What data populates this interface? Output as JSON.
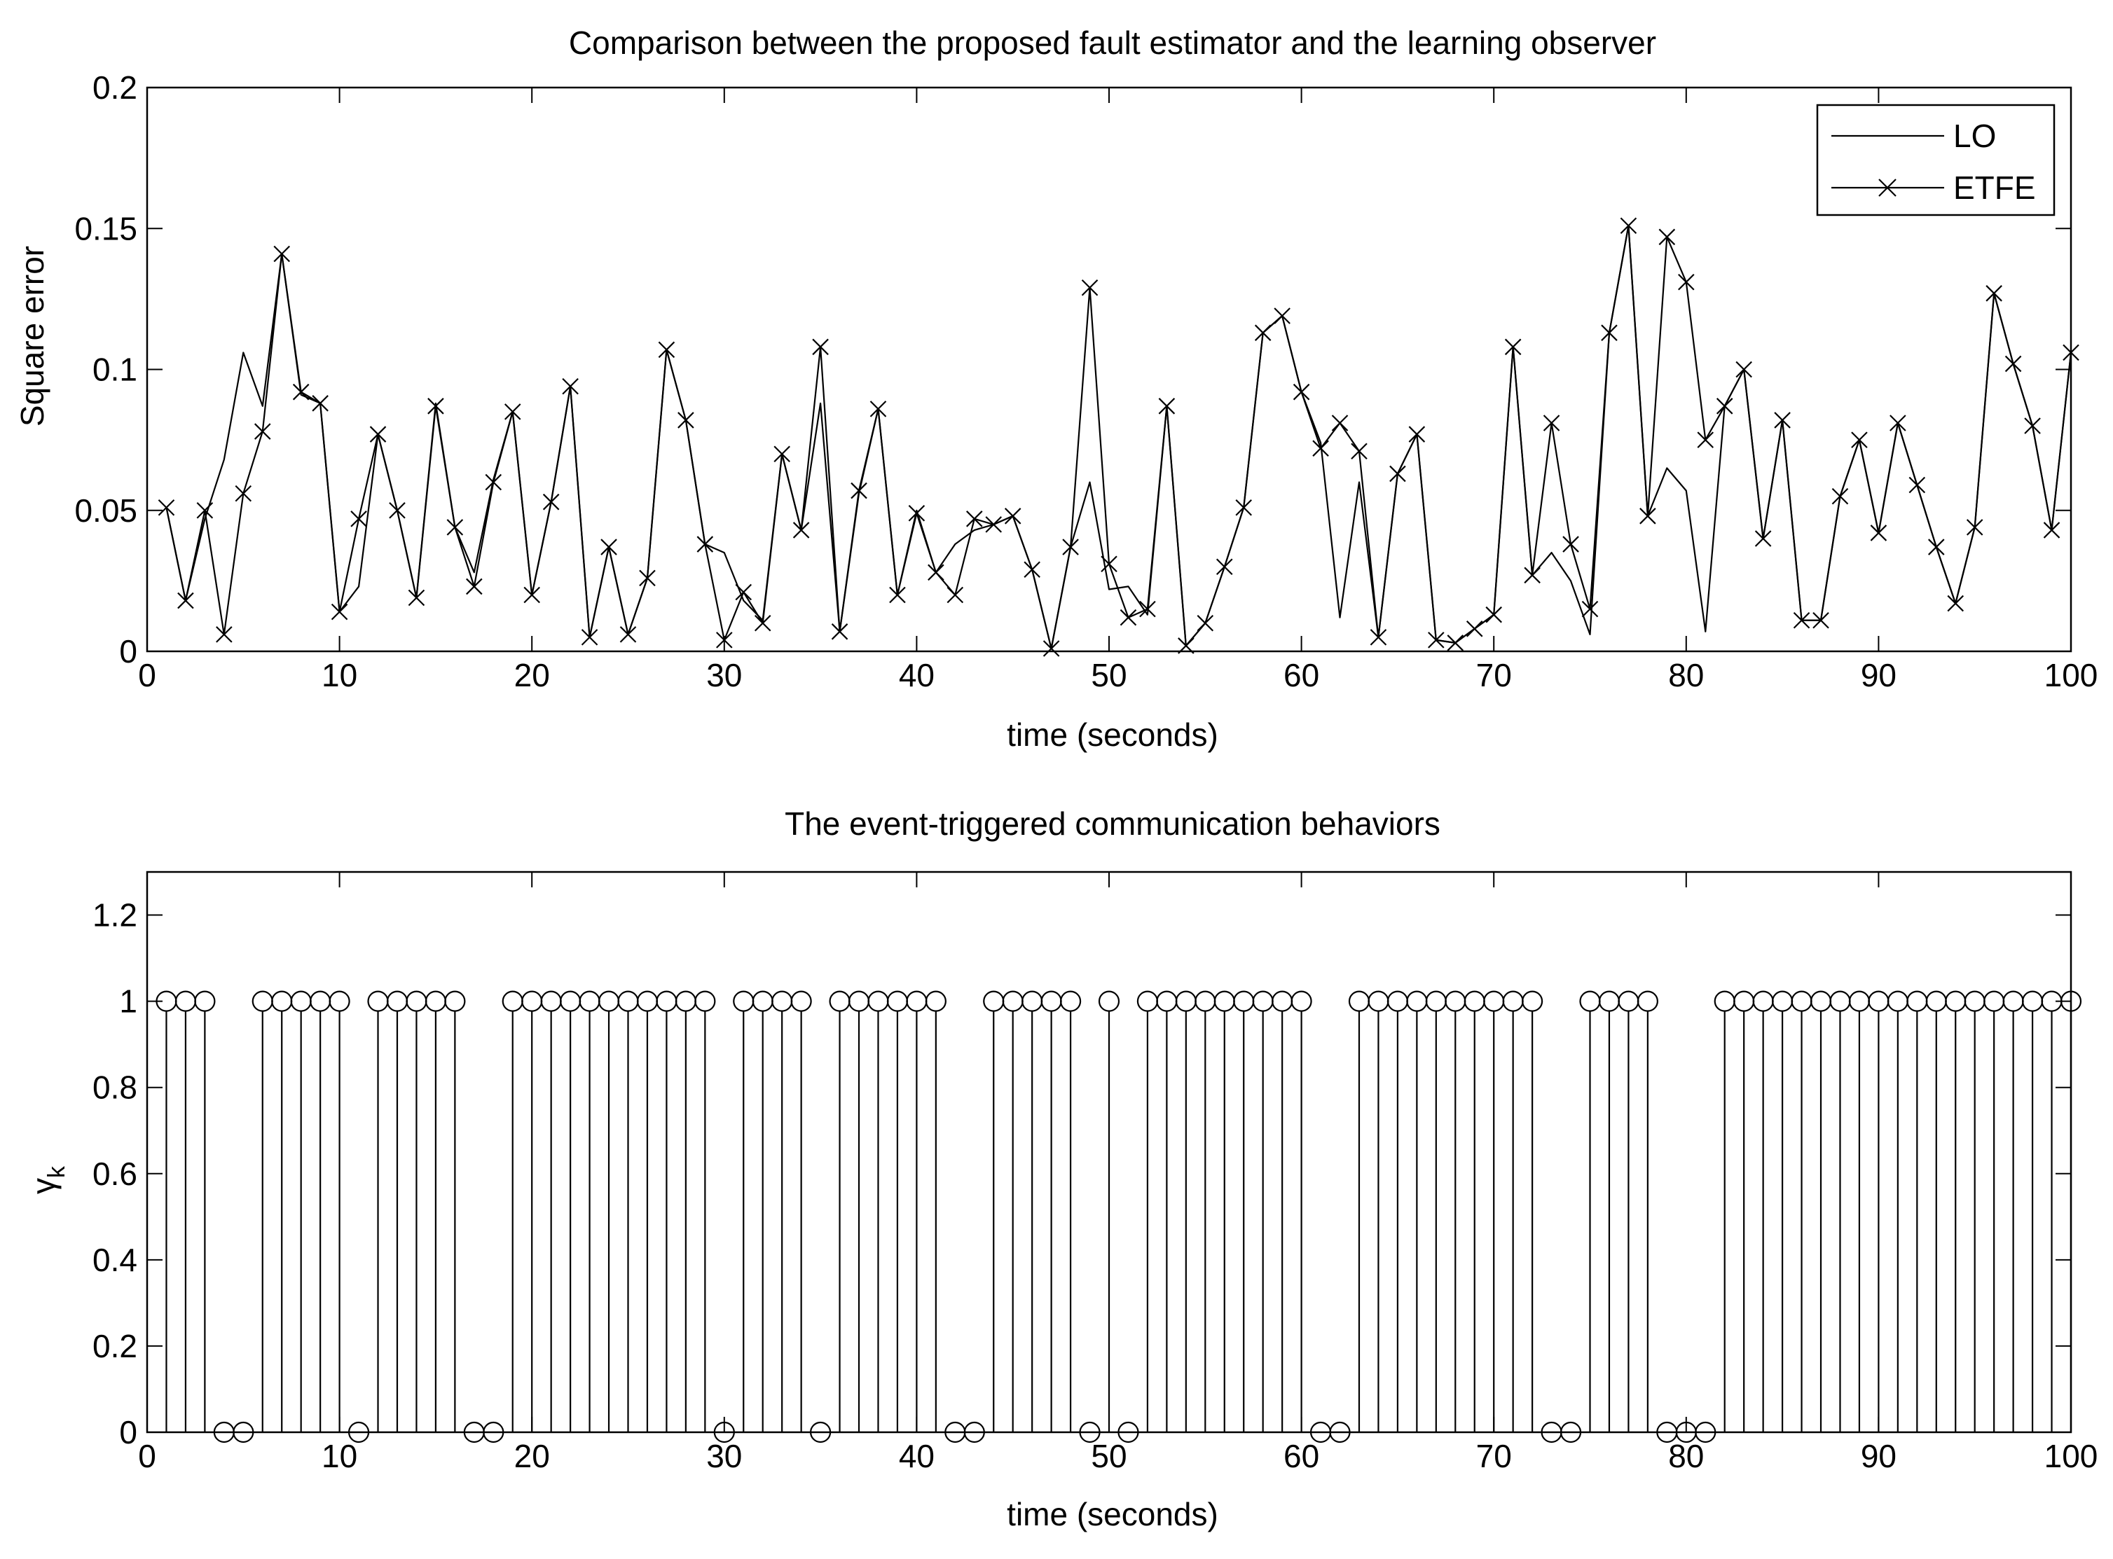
{
  "chart_data": [
    {
      "type": "line",
      "title": "Comparison between the proposed fault estimator and the learning observer",
      "xlabel": "time (seconds)",
      "ylabel": "Square error",
      "xlim": [
        0,
        100
      ],
      "ylim": [
        0,
        0.2
      ],
      "xticks": [
        "0",
        "10",
        "20",
        "30",
        "40",
        "50",
        "60",
        "70",
        "80",
        "90",
        "100"
      ],
      "yticks": [
        "0",
        "0.05",
        "0.1",
        "0.15",
        "0.2"
      ],
      "legend": {
        "position": "top-right",
        "entries": [
          "LO",
          "ETFE"
        ]
      },
      "x": [
        1,
        2,
        3,
        4,
        5,
        6,
        7,
        8,
        9,
        10,
        11,
        12,
        13,
        14,
        15,
        16,
        17,
        18,
        19,
        20,
        21,
        22,
        23,
        24,
        25,
        26,
        27,
        28,
        29,
        30,
        31,
        32,
        33,
        34,
        35,
        36,
        37,
        38,
        39,
        40,
        41,
        42,
        43,
        44,
        45,
        46,
        47,
        48,
        49,
        50,
        51,
        52,
        53,
        54,
        55,
        56,
        57,
        58,
        59,
        60,
        61,
        62,
        63,
        64,
        65,
        66,
        67,
        68,
        69,
        70,
        71,
        72,
        73,
        74,
        75,
        76,
        77,
        78,
        79,
        80,
        81,
        82,
        83,
        84,
        85,
        86,
        87,
        88,
        89,
        90,
        91,
        92,
        93,
        94,
        95,
        96,
        97,
        98,
        99,
        100
      ],
      "series": [
        {
          "name": "LO",
          "values": [
            0.051,
            0.018,
            0.047,
            0.068,
            0.106,
            0.087,
            0.141,
            0.091,
            0.088,
            0.014,
            0.023,
            0.077,
            0.05,
            0.019,
            0.088,
            0.044,
            0.028,
            0.061,
            0.085,
            0.02,
            0.053,
            0.094,
            0.005,
            0.037,
            0.006,
            0.026,
            0.107,
            0.082,
            0.038,
            0.035,
            0.018,
            0.011,
            0.07,
            0.043,
            0.088,
            0.007,
            0.056,
            0.086,
            0.02,
            0.05,
            0.028,
            0.038,
            0.043,
            0.045,
            0.048,
            0.029,
            0.001,
            0.037,
            0.06,
            0.022,
            0.023,
            0.013,
            0.087,
            0.002,
            0.01,
            0.03,
            0.051,
            0.113,
            0.119,
            0.092,
            0.074,
            0.012,
            0.06,
            0.005,
            0.063,
            0.077,
            0.004,
            0.003,
            0.008,
            0.013,
            0.108,
            0.027,
            0.035,
            0.025,
            0.006,
            0.113,
            0.151,
            0.048,
            0.065,
            0.057,
            0.007,
            0.087,
            0.1,
            0.04,
            0.082,
            0.011,
            0.011,
            0.055,
            0.075,
            0.042,
            0.081,
            0.059,
            0.037,
            0.017,
            0.044,
            0.127,
            0.102,
            0.08,
            0.043,
            0.106
          ]
        },
        {
          "name": "ETFE",
          "values": [
            0.051,
            0.018,
            0.05,
            0.006,
            0.056,
            0.078,
            0.141,
            0.092,
            0.088,
            0.014,
            0.047,
            0.077,
            0.05,
            0.019,
            0.087,
            0.044,
            0.023,
            0.06,
            0.085,
            0.02,
            0.053,
            0.094,
            0.005,
            0.037,
            0.006,
            0.026,
            0.107,
            0.082,
            0.038,
            0.004,
            0.021,
            0.01,
            0.07,
            0.043,
            0.108,
            0.007,
            0.057,
            0.086,
            0.02,
            0.049,
            0.028,
            0.02,
            0.047,
            0.045,
            0.048,
            0.029,
            0.001,
            0.037,
            0.129,
            0.031,
            0.012,
            0.015,
            0.087,
            0.002,
            0.01,
            0.03,
            0.051,
            0.113,
            0.119,
            0.092,
            0.072,
            0.081,
            0.071,
            0.005,
            0.063,
            0.077,
            0.004,
            0.003,
            0.008,
            0.013,
            0.108,
            0.027,
            0.081,
            0.038,
            0.015,
            0.113,
            0.151,
            0.048,
            0.147,
            0.131,
            0.075,
            0.087,
            0.1,
            0.04,
            0.082,
            0.011,
            0.011,
            0.055,
            0.075,
            0.042,
            0.081,
            0.059,
            0.037,
            0.017,
            0.044,
            0.127,
            0.102,
            0.08,
            0.043,
            0.106
          ]
        }
      ]
    },
    {
      "type": "stem",
      "title": "The event-triggered communication behaviors",
      "xlabel": "time (seconds)",
      "ylabel": "γk",
      "ylabel_main": "γ",
      "ylabel_sub": "k",
      "xlim": [
        0,
        100
      ],
      "ylim": [
        0,
        1.3
      ],
      "xticks": [
        "0",
        "10",
        "20",
        "30",
        "40",
        "50",
        "60",
        "70",
        "80",
        "90",
        "100"
      ],
      "yticks": [
        "0",
        "0.2",
        "0.4",
        "0.6",
        "0.8",
        "1",
        "1.2"
      ],
      "x": [
        1,
        2,
        3,
        4,
        5,
        6,
        7,
        8,
        9,
        10,
        11,
        12,
        13,
        14,
        15,
        16,
        17,
        18,
        19,
        20,
        21,
        22,
        23,
        24,
        25,
        26,
        27,
        28,
        29,
        30,
        31,
        32,
        33,
        34,
        35,
        36,
        37,
        38,
        39,
        40,
        41,
        42,
        43,
        44,
        45,
        46,
        47,
        48,
        49,
        50,
        51,
        52,
        53,
        54,
        55,
        56,
        57,
        58,
        59,
        60,
        61,
        62,
        63,
        64,
        65,
        66,
        67,
        68,
        69,
        70,
        71,
        72,
        73,
        74,
        75,
        76,
        77,
        78,
        79,
        80,
        81,
        82,
        83,
        84,
        85,
        86,
        87,
        88,
        89,
        90,
        91,
        92,
        93,
        94,
        95,
        96,
        97,
        98,
        99,
        100
      ],
      "values": [
        1,
        1,
        1,
        0,
        0,
        1,
        1,
        1,
        1,
        1,
        0,
        1,
        1,
        1,
        1,
        1,
        0,
        0,
        1,
        1,
        1,
        1,
        1,
        1,
        1,
        1,
        1,
        1,
        1,
        0,
        1,
        1,
        1,
        1,
        0,
        1,
        1,
        1,
        1,
        1,
        1,
        0,
        0,
        1,
        1,
        1,
        1,
        1,
        0,
        1,
        0,
        1,
        1,
        1,
        1,
        1,
        1,
        1,
        1,
        1,
        0,
        0,
        1,
        1,
        1,
        1,
        1,
        1,
        1,
        1,
        1,
        1,
        0,
        0,
        1,
        1,
        1,
        1,
        0,
        0,
        0,
        1,
        1,
        1,
        1,
        1,
        1,
        1,
        1,
        1,
        1,
        1,
        1,
        1,
        1,
        1,
        1,
        1,
        1,
        1
      ]
    }
  ]
}
